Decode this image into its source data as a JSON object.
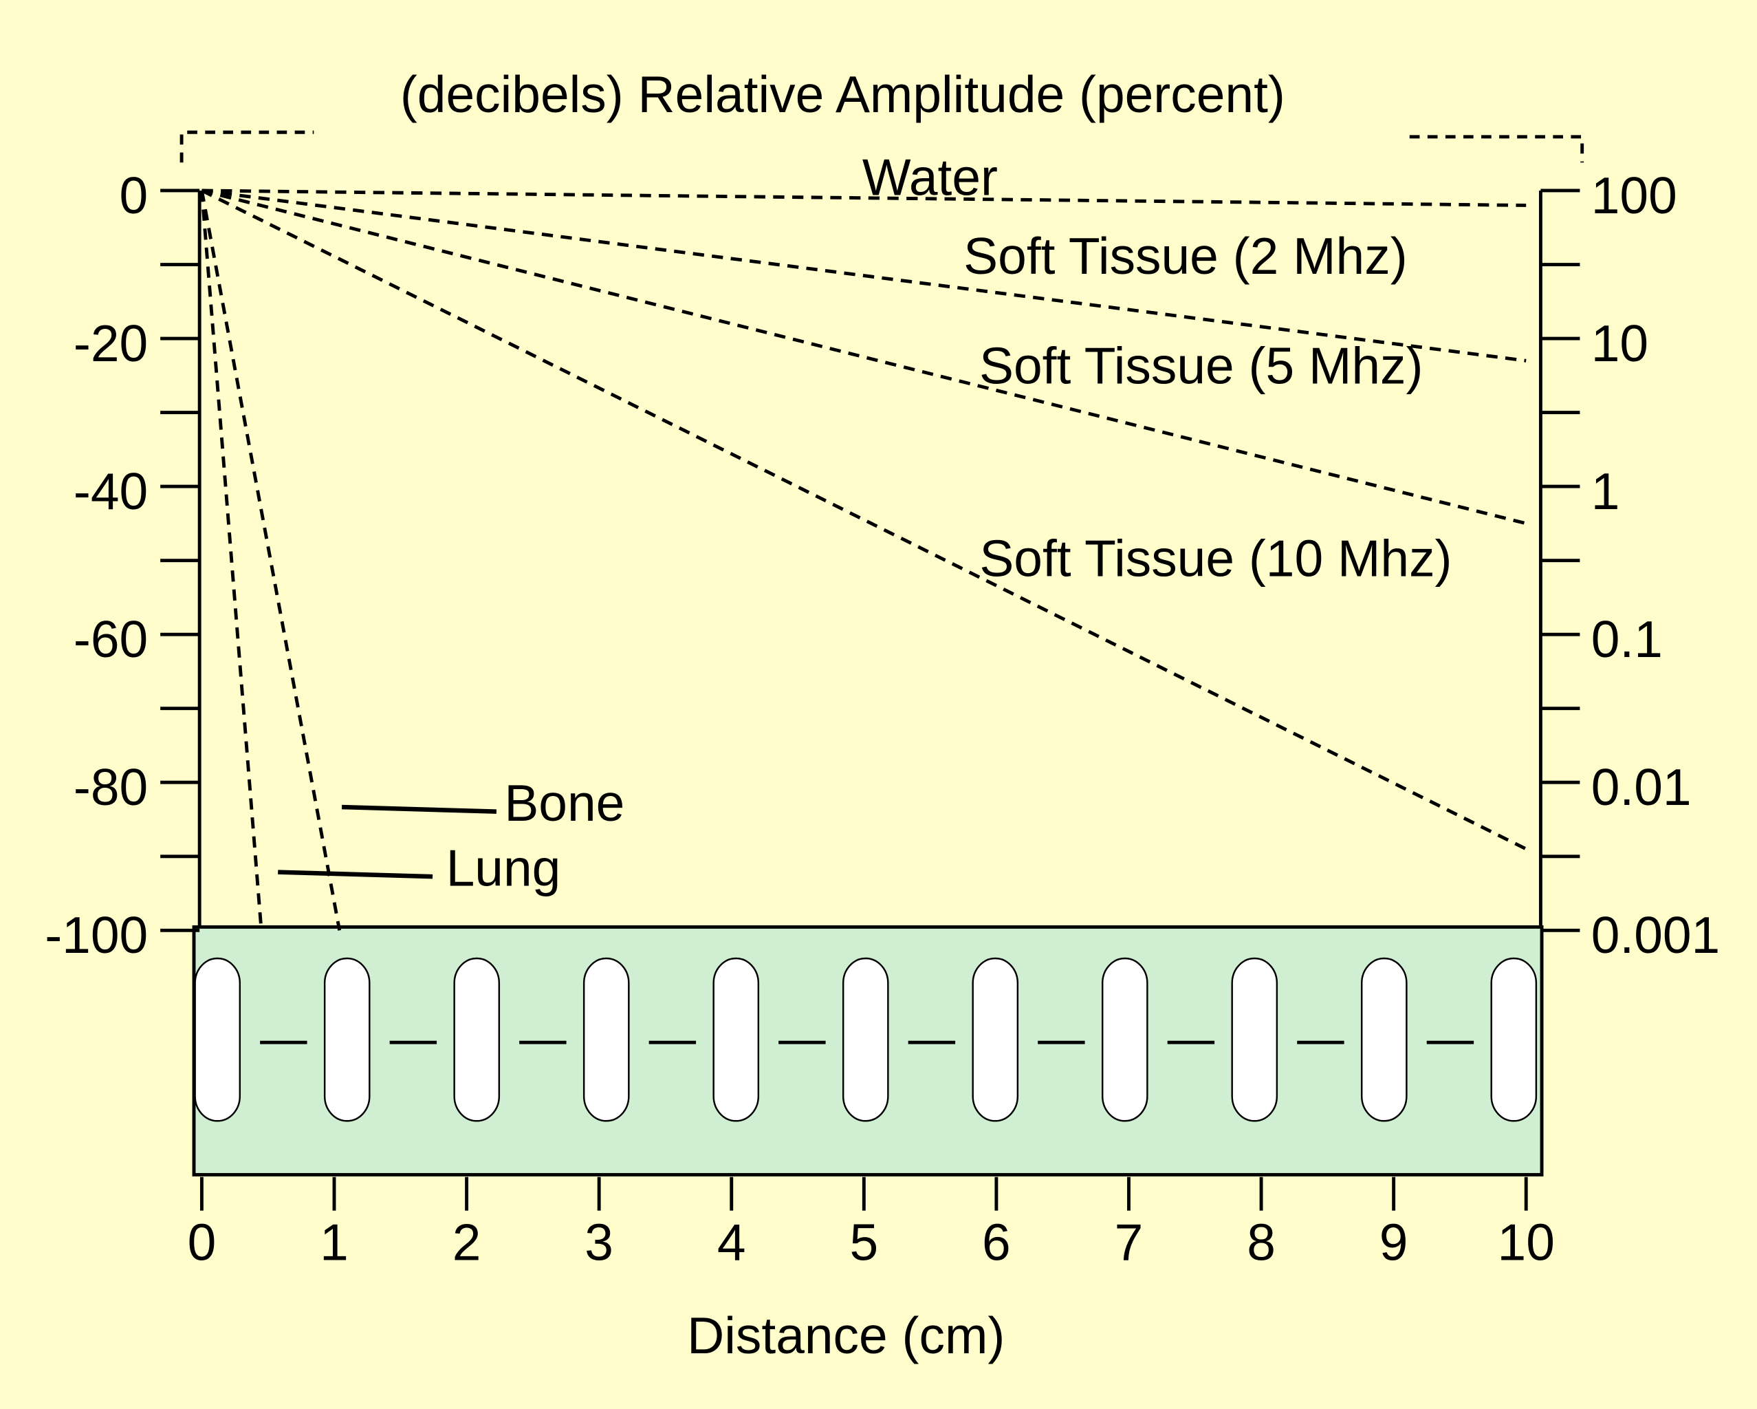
{
  "chart_data": {
    "type": "line",
    "title": "(decibels) Relative Amplitude (percent)",
    "x_label": "Distance (cm)",
    "xlim": [
      0,
      10
    ],
    "xticks": [
      0,
      1,
      2,
      3,
      4,
      5,
      6,
      7,
      8,
      9,
      10
    ],
    "ylim": [
      -100,
      0
    ],
    "yticks": [
      0,
      -20,
      -40,
      -60,
      -80,
      -100
    ],
    "yminor": [
      -10,
      -30,
      -50,
      -70,
      -90
    ],
    "y2lim": [
      0.001,
      100
    ],
    "y2log": true,
    "y2ticks": [
      100,
      10,
      1,
      0.1,
      0.01,
      0.001
    ],
    "series": [
      {
        "name": "Water",
        "color": "#000000",
        "x": [
          0,
          10
        ],
        "values": [
          0,
          -2
        ]
      },
      {
        "name": "Soft Tissue (2 Mhz)",
        "color": "#000000",
        "x": [
          0,
          10
        ],
        "values": [
          0,
          -23
        ]
      },
      {
        "name": "Soft Tissue (5 Mhz)",
        "color": "#000000",
        "x": [
          0,
          10
        ],
        "values": [
          0,
          -45
        ]
      },
      {
        "name": "Soft Tissue (10 Mhz)",
        "color": "#000000",
        "x": [
          0,
          10
        ],
        "values": [
          0,
          -89
        ]
      },
      {
        "name": "Bone",
        "color": "#000000",
        "x": [
          0,
          1.04
        ],
        "values": [
          0,
          -100
        ]
      },
      {
        "name": "Lung",
        "color": "#000000",
        "x": [
          0,
          0.45
        ],
        "values": [
          0,
          -100
        ]
      }
    ]
  }
}
